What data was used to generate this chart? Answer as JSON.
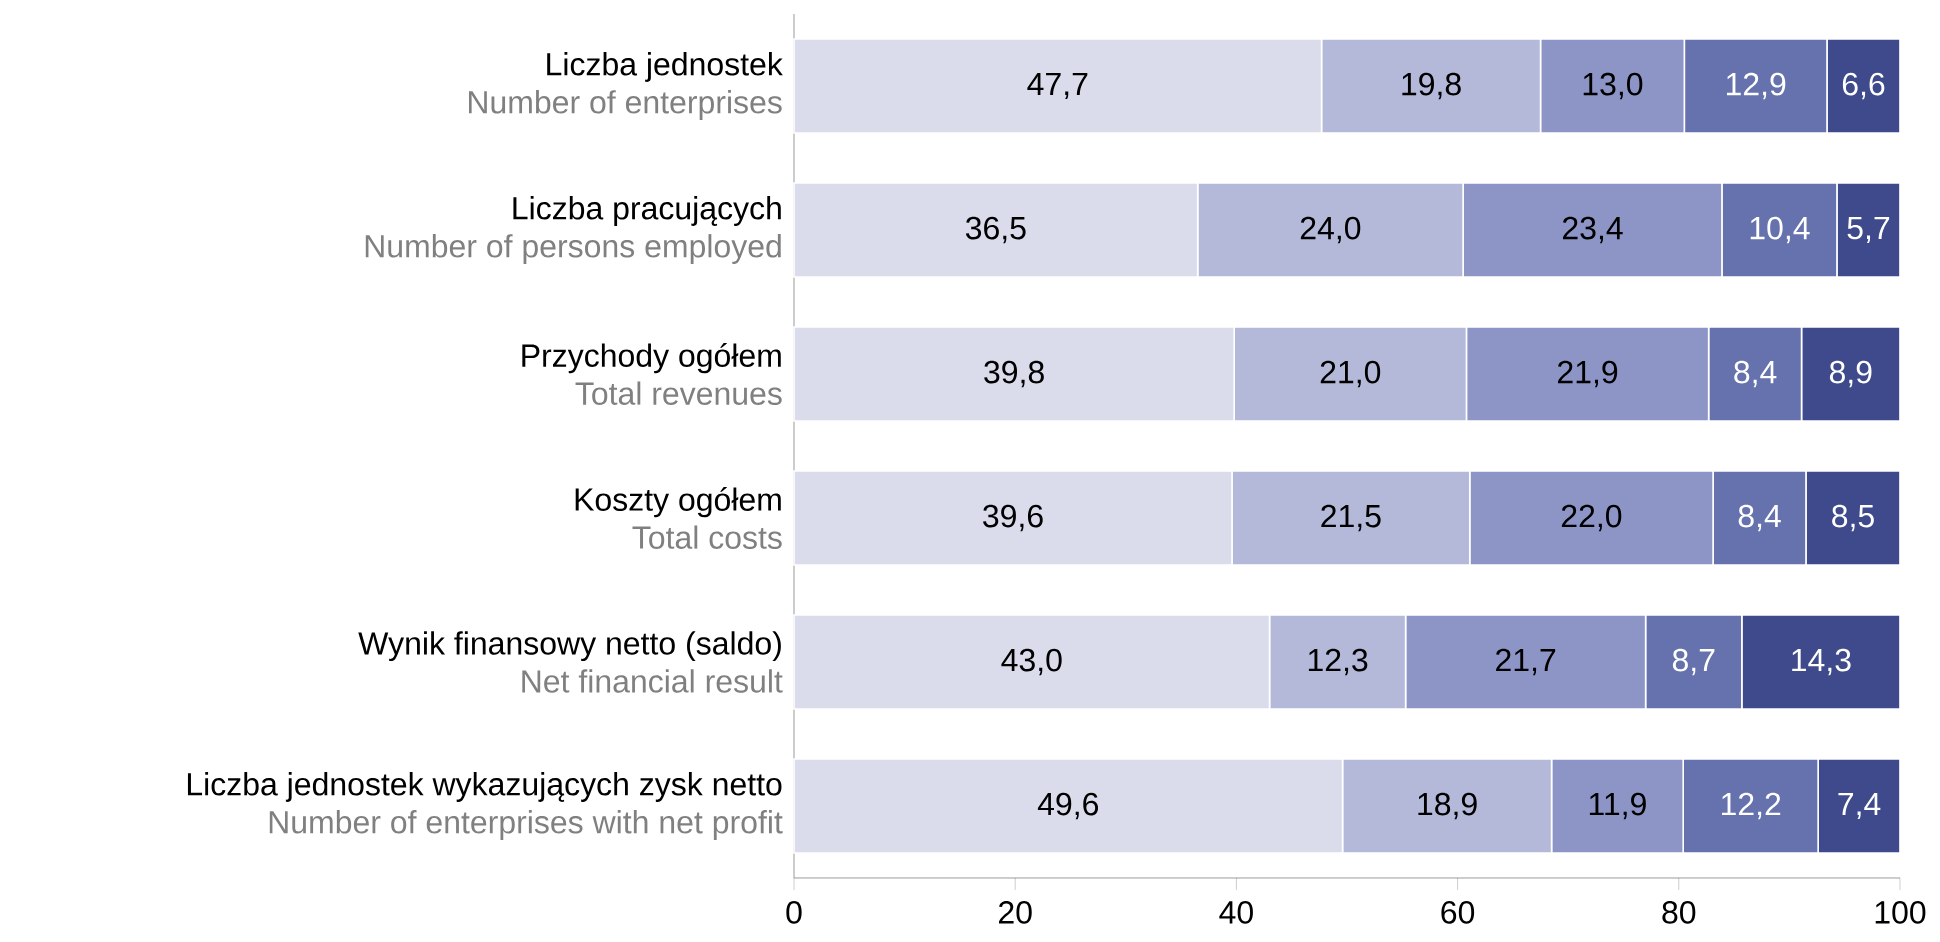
{
  "chart_data": {
    "type": "bar",
    "orientation": "horizontal",
    "stacked": true,
    "categories": [
      "Liczba jednostek",
      "Liczba pracujących",
      "Przychody ogółem",
      "Koszty ogółem",
      "Wynik finansowy netto (saldo)",
      "Liczba jednostek wykazujących zysk netto"
    ],
    "annotations": [
      "Number of enterprises",
      "Number of persons employed",
      "Total revenues",
      "Total costs",
      "Net financial result",
      "Number of enterprises with net profit"
    ],
    "series": [
      {
        "color": "#dadceb",
        "values": [
          47.7,
          36.5,
          39.8,
          39.6,
          43.0,
          49.6
        ],
        "value_labels": [
          "47,7",
          "36,5",
          "39,8",
          "39,6",
          "43,0",
          "49,6"
        ]
      },
      {
        "color": "#b4b9d9",
        "values": [
          19.8,
          24.0,
          21.0,
          21.5,
          12.3,
          18.9
        ],
        "value_labels": [
          "19,8",
          "24,0",
          "21,0",
          "21,5",
          "12,3",
          "18,9"
        ]
      },
      {
        "color": "#8c95c6",
        "values": [
          13.0,
          23.4,
          21.9,
          22.0,
          21.7,
          11.9
        ],
        "value_labels": [
          "13,0",
          "23,4",
          "21,9",
          "22,0",
          "21,7",
          "11,9"
        ]
      },
      {
        "color": "#6672ae",
        "values": [
          12.9,
          10.4,
          8.4,
          8.4,
          8.7,
          12.2
        ],
        "value_labels": [
          "12,9",
          "10,4",
          "8,4",
          "8,4",
          "8,7",
          "12,2"
        ]
      },
      {
        "color": "#3e4a8c",
        "values": [
          6.6,
          5.7,
          8.9,
          8.5,
          14.3,
          7.4
        ],
        "value_labels": [
          "6,6",
          "5,7",
          "8,9",
          "8,5",
          "14,3",
          "7,4"
        ]
      }
    ],
    "xlim": [
      0,
      100
    ],
    "xticks": [
      0,
      20,
      40,
      60,
      80,
      100
    ]
  }
}
